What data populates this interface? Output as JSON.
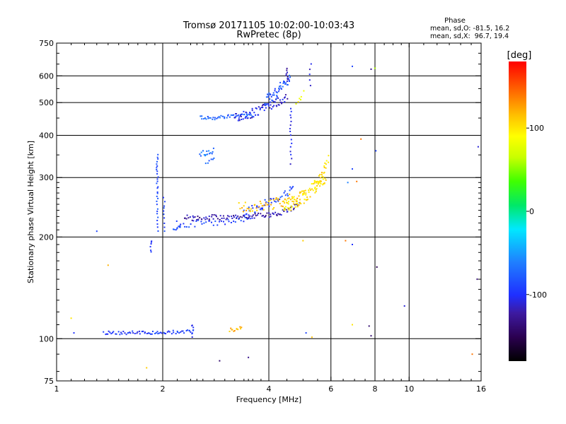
{
  "chart_data": {
    "type": "scatter",
    "title": "Tromsø 20171105 10:02:00-10:03:43",
    "subtitle": "RwPretec (8p)",
    "xlabel": "Frequency [MHz]",
    "ylabel": "Stationary phase Virtual Height [km]",
    "x_scale": "log",
    "y_scale": "log",
    "xlim": [
      1,
      16
    ],
    "ylim": [
      75,
      750
    ],
    "x_ticks": [
      1,
      2,
      4,
      6,
      8,
      10,
      16
    ],
    "x_tick_labels": [
      "1",
      "2",
      "4",
      "6",
      "8",
      "10",
      "16"
    ],
    "y_ticks": [
      75,
      100,
      200,
      300,
      400,
      500,
      600,
      750
    ],
    "y_tick_labels": [
      "75",
      "100",
      "200",
      "300",
      "400",
      "500",
      "600",
      "750"
    ],
    "grid": true,
    "phase_stats": {
      "header": "Phase",
      "line_o": "mean, sd,O: -81.5, 16.2",
      "line_x": "mean, sd,X:  96.7, 19.4"
    },
    "colorbar": {
      "label": "[deg]",
      "range": [
        -180,
        180
      ],
      "ticks": [
        100,
        0,
        -100
      ],
      "tick_labels": [
        "100",
        "0",
        "-100"
      ]
    },
    "series": [
      {
        "traces": [
          {
            "x0": 1.36,
            "x1": 2.45,
            "y0": 104,
            "y1": 105,
            "n": 70,
            "phase": -95,
            "spread": 1.2
          },
          {
            "x0": 2.3,
            "x1": 4.0,
            "y0": 228,
            "y1": 232,
            "n": 70,
            "phase": -125,
            "spread": 4
          },
          {
            "x0": 4.0,
            "x1": 4.9,
            "y0": 232,
            "y1": 250,
            "n": 30,
            "phase": -120,
            "spread": 4
          },
          {
            "x0": 2.2,
            "x1": 3.6,
            "y0": 218,
            "y1": 228,
            "n": 40,
            "phase": -92,
            "spread": 5
          },
          {
            "x0": 3.4,
            "x1": 4.7,
            "y0": 240,
            "y1": 278,
            "n": 45,
            "phase": -90,
            "spread": 8
          },
          {
            "x0": 3.3,
            "x1": 5.1,
            "y0": 245,
            "y1": 265,
            "n": 60,
            "phase": 115,
            "spread": 10
          },
          {
            "x0": 4.4,
            "x1": 5.8,
            "y0": 248,
            "y1": 300,
            "n": 75,
            "phase": 100,
            "spread": 12
          },
          {
            "x0": 5.4,
            "x1": 5.9,
            "y0": 285,
            "y1": 340,
            "n": 25,
            "phase": 105,
            "spread": 10
          },
          {
            "x0": 2.55,
            "x1": 3.6,
            "y0": 450,
            "y1": 460,
            "n": 45,
            "phase": -75,
            "spread": 6
          },
          {
            "x0": 3.2,
            "x1": 4.5,
            "y0": 455,
            "y1": 520,
            "n": 70,
            "phase": -110,
            "spread": 15
          },
          {
            "x0": 3.9,
            "x1": 4.6,
            "y0": 510,
            "y1": 600,
            "n": 50,
            "phase": -85,
            "spread": 20
          },
          {
            "x0": 2.55,
            "x1": 2.8,
            "y0": 355,
            "y1": 358,
            "n": 15,
            "phase": -70,
            "spread": 8
          },
          {
            "x0": 2.65,
            "x1": 2.8,
            "y0": 330,
            "y1": 340,
            "n": 6,
            "phase": -80,
            "spread": 6
          },
          {
            "x0": 2.15,
            "x1": 2.25,
            "y0": 210,
            "y1": 215,
            "n": 8,
            "phase": -80,
            "spread": 3
          },
          {
            "x0": 3.1,
            "x1": 3.35,
            "y0": 106,
            "y1": 108,
            "n": 12,
            "phase": 120,
            "spread": 1.5
          },
          {
            "x0": 4.8,
            "x1": 5.0,
            "y0": 500,
            "y1": 540,
            "n": 6,
            "phase": 90,
            "spread": 8
          }
        ]
      },
      {
        "columns": [
          {
            "x": 1.93,
            "y0": 210,
            "y1": 350,
            "n": 30,
            "phase": -85
          },
          {
            "x": 1.85,
            "y0": 180,
            "y1": 195,
            "n": 6,
            "phase": -100
          },
          {
            "x": 2.02,
            "y0": 210,
            "y1": 260,
            "n": 10,
            "phase": -90
          },
          {
            "x": 4.62,
            "y0": 330,
            "y1": 480,
            "n": 16,
            "phase": -105
          },
          {
            "x": 4.5,
            "y0": 580,
            "y1": 630,
            "n": 8,
            "phase": -120
          },
          {
            "x": 5.25,
            "y0": 560,
            "y1": 650,
            "n": 5,
            "phase": -110
          },
          {
            "x": 2.43,
            "y0": 100,
            "y1": 110,
            "n": 6,
            "phase": -100
          }
        ]
      },
      {
        "points": [
          [
            1.12,
            104,
            -100
          ],
          [
            1.1,
            115,
            100
          ],
          [
            1.3,
            208,
            -90
          ],
          [
            1.4,
            165,
            120
          ],
          [
            1.8,
            82,
            110
          ],
          [
            2.9,
            86,
            -140
          ],
          [
            3.5,
            88,
            -130
          ],
          [
            5.1,
            104,
            -90
          ],
          [
            5.3,
            101,
            115
          ],
          [
            6.9,
            640,
            -90
          ],
          [
            7.8,
            628,
            -130
          ],
          [
            8.0,
            632,
            60
          ],
          [
            7.3,
            390,
            140
          ],
          [
            8.05,
            360,
            -90
          ],
          [
            6.9,
            318,
            -90
          ],
          [
            6.7,
            290,
            -60
          ],
          [
            7.1,
            292,
            140
          ],
          [
            6.6,
            195,
            140
          ],
          [
            6.9,
            190,
            -100
          ],
          [
            8.1,
            163,
            -150
          ],
          [
            9.7,
            125,
            -110
          ],
          [
            7.7,
            109,
            -140
          ],
          [
            6.9,
            110,
            100
          ],
          [
            7.8,
            102,
            -140
          ],
          [
            5.0,
            195,
            110
          ],
          [
            15.1,
            90,
            140
          ],
          [
            15.6,
            150,
            -140
          ],
          [
            15.7,
            370,
            -110
          ]
        ]
      }
    ]
  }
}
